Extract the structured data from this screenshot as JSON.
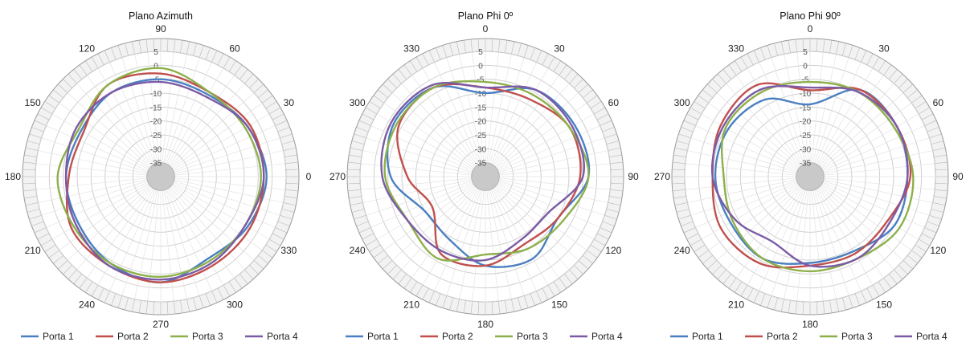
{
  "chart_data": [
    {
      "type": "polar-line",
      "title": "Plano Azimuth",
      "angle_labels": [
        "90",
        "60",
        "30",
        "0",
        "330",
        "300",
        "270",
        "240",
        "210",
        "180",
        "150",
        "120"
      ],
      "radial_labels": [
        "5",
        "0",
        "-5",
        "-10",
        "-15",
        "-20",
        "-25",
        "-30",
        "-35"
      ],
      "rlim": [
        -40,
        5
      ],
      "grid": true,
      "legend": "bottom",
      "series": [
        {
          "name": "Porta 1",
          "color": "#4a7fc1",
          "angles": [
            0,
            30,
            60,
            90,
            120,
            150,
            180,
            210,
            240,
            270,
            300,
            330
          ],
          "values": [
            -2,
            -4,
            -6,
            -5,
            -5,
            -7,
            -6,
            -6,
            -4,
            -2,
            -6,
            -4
          ]
        },
        {
          "name": "Porta 2",
          "color": "#c0504d",
          "angles": [
            0,
            30,
            60,
            90,
            120,
            150,
            180,
            210,
            240,
            270,
            300,
            330
          ],
          "values": [
            -3,
            -3,
            -5,
            -3,
            -2,
            -8,
            -7,
            -3,
            -3,
            -2,
            -3,
            -3
          ]
        },
        {
          "name": "Porta 3",
          "color": "#8db04b",
          "angles": [
            0,
            30,
            60,
            90,
            120,
            150,
            180,
            210,
            240,
            270,
            300,
            330
          ],
          "values": [
            -4,
            -5,
            -5,
            -1,
            -2,
            -6,
            -3,
            -4,
            -4,
            -4,
            -5,
            -5
          ]
        },
        {
          "name": "Porta 4",
          "color": "#7b5ba6",
          "angles": [
            0,
            30,
            60,
            90,
            120,
            150,
            180,
            210,
            240,
            270,
            300,
            330
          ],
          "values": [
            -3,
            -4,
            -7,
            -6,
            -5,
            -5,
            -6,
            -5,
            -3,
            -3,
            -4,
            -5
          ]
        }
      ]
    },
    {
      "type": "polar-line",
      "title": "Plano Phi 0º",
      "angle_labels": [
        "0",
        "30",
        "60",
        "90",
        "120",
        "150",
        "180",
        "210",
        "240",
        "270",
        "300",
        "330"
      ],
      "radial_labels": [
        "5",
        "0",
        "-5",
        "-10",
        "-15",
        "-20",
        "-25",
        "-30",
        "-35"
      ],
      "rlim": [
        -40,
        5
      ],
      "grid": true,
      "legend": "bottom",
      "series": [
        {
          "name": "Porta 1",
          "color": "#4a7fc1",
          "angles": [
            0,
            30,
            60,
            90,
            120,
            150,
            180,
            210,
            240,
            270,
            300,
            330
          ],
          "values": [
            -10,
            -4,
            -3,
            -3,
            -10,
            -6,
            -8,
            -14,
            -15,
            -6,
            -2,
            -3
          ]
        },
        {
          "name": "Porta 2",
          "color": "#c0504d",
          "angles": [
            0,
            30,
            60,
            90,
            120,
            150,
            180,
            210,
            240,
            270,
            300,
            330
          ],
          "values": [
            -8,
            -8,
            -5,
            -6,
            -10,
            -12,
            -8,
            -8,
            -18,
            -12,
            -4,
            -3
          ]
        },
        {
          "name": "Porta 3",
          "color": "#8db04b",
          "angles": [
            0,
            30,
            60,
            90,
            120,
            150,
            180,
            210,
            240,
            270,
            300,
            330
          ],
          "values": [
            -6,
            -6,
            -5,
            -3,
            -8,
            -10,
            -12,
            -6,
            -8,
            -4,
            -3,
            -3
          ]
        },
        {
          "name": "Porta 4",
          "color": "#7b5ba6",
          "angles": [
            0,
            30,
            60,
            90,
            120,
            150,
            180,
            210,
            240,
            270,
            300,
            330
          ],
          "values": [
            -8,
            -4,
            -4,
            -5,
            -14,
            -14,
            -10,
            -9,
            -8,
            -3,
            -1,
            -2
          ]
        }
      ]
    },
    {
      "type": "polar-line",
      "title": "Plano Phi 90º",
      "angle_labels": [
        "0",
        "30",
        "60",
        "90",
        "120",
        "150",
        "180",
        "210",
        "240",
        "270",
        "300",
        "330"
      ],
      "radial_labels": [
        "5",
        "0",
        "-5",
        "-10",
        "-15",
        "-20",
        "-25",
        "-30",
        "-35"
      ],
      "rlim": [
        -40,
        5
      ],
      "grid": true,
      "legend": "bottom",
      "series": [
        {
          "name": "Porta 1",
          "color": "#4a7fc1",
          "angles": [
            0,
            30,
            60,
            90,
            120,
            150,
            180,
            210,
            240,
            270,
            300,
            330
          ],
          "values": [
            -14,
            -4,
            -4,
            -5,
            -5,
            -9,
            -9,
            -6,
            -7,
            -6,
            -6,
            -8
          ]
        },
        {
          "name": "Porta 2",
          "color": "#c0504d",
          "angles": [
            0,
            30,
            60,
            90,
            120,
            150,
            180,
            210,
            240,
            270,
            300,
            330
          ],
          "values": [
            -9,
            -4,
            -4,
            -4,
            -8,
            -8,
            -8,
            -4,
            -3,
            -5,
            -3,
            -2
          ]
        },
        {
          "name": "Porta 3",
          "color": "#8db04b",
          "angles": [
            0,
            30,
            60,
            90,
            120,
            150,
            180,
            210,
            240,
            270,
            300,
            330
          ],
          "values": [
            -6,
            -5,
            -5,
            -3,
            -3,
            -6,
            -6,
            -6,
            -8,
            -9,
            -5,
            -5
          ]
        },
        {
          "name": "Porta 4",
          "color": "#7b5ba6",
          "angles": [
            0,
            30,
            60,
            90,
            120,
            150,
            180,
            210,
            240,
            270,
            300,
            330
          ],
          "values": [
            -8,
            -5,
            -4,
            -5,
            -7,
            -6,
            -8,
            -13,
            -9,
            -5,
            -4,
            -4
          ]
        }
      ]
    }
  ]
}
